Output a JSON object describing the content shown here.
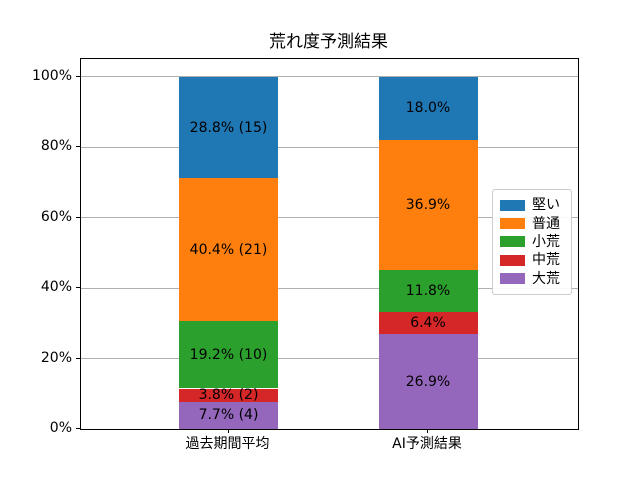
{
  "chart_data": {
    "type": "bar",
    "stacked": true,
    "orientation": "vertical",
    "title": "荒れ度予測結果",
    "categories": [
      "過去期間平均",
      "AI予測結果"
    ],
    "unit": "%",
    "series": [
      {
        "name": "堅い",
        "color": "#1f77b4",
        "values": [
          28.8,
          18.0
        ],
        "bar_labels": [
          "28.8% (15)",
          "18.0%"
        ]
      },
      {
        "name": "普通",
        "color": "#ff7f0e",
        "values": [
          40.4,
          36.9
        ],
        "bar_labels": [
          "40.4% (21)",
          "36.9%"
        ]
      },
      {
        "name": "小荒",
        "color": "#2ca02c",
        "values": [
          19.2,
          11.8
        ],
        "bar_labels": [
          "19.2% (10)",
          "11.8%"
        ]
      },
      {
        "name": "中荒",
        "color": "#d62728",
        "values": [
          3.8,
          6.4
        ],
        "bar_labels": [
          "3.8% (2)",
          "6.4%"
        ]
      },
      {
        "name": "大荒",
        "color": "#9467bd",
        "values": [
          7.7,
          26.9
        ],
        "bar_labels": [
          "7.7% (4)",
          "26.9%"
        ]
      }
    ],
    "stack_order_bottom_to_top": [
      "大荒",
      "中荒",
      "小荒",
      "普通",
      "堅い"
    ],
    "legend": {
      "position": "center right",
      "entries": [
        "堅い",
        "普通",
        "小荒",
        "中荒",
        "大荒"
      ]
    },
    "y_axis": {
      "ticks": [
        {
          "value": 0,
          "label": "0%"
        },
        {
          "value": 20,
          "label": "20%"
        },
        {
          "value": 40,
          "label": "40%"
        },
        {
          "value": 60,
          "label": "60%"
        },
        {
          "value": 80,
          "label": "80%"
        },
        {
          "value": 100,
          "label": "100%"
        }
      ],
      "range": [
        0,
        105
      ]
    },
    "grid": true,
    "grid_color": "#b0b0b0",
    "background_color": "#ffffff",
    "text_color": "#000000"
  }
}
